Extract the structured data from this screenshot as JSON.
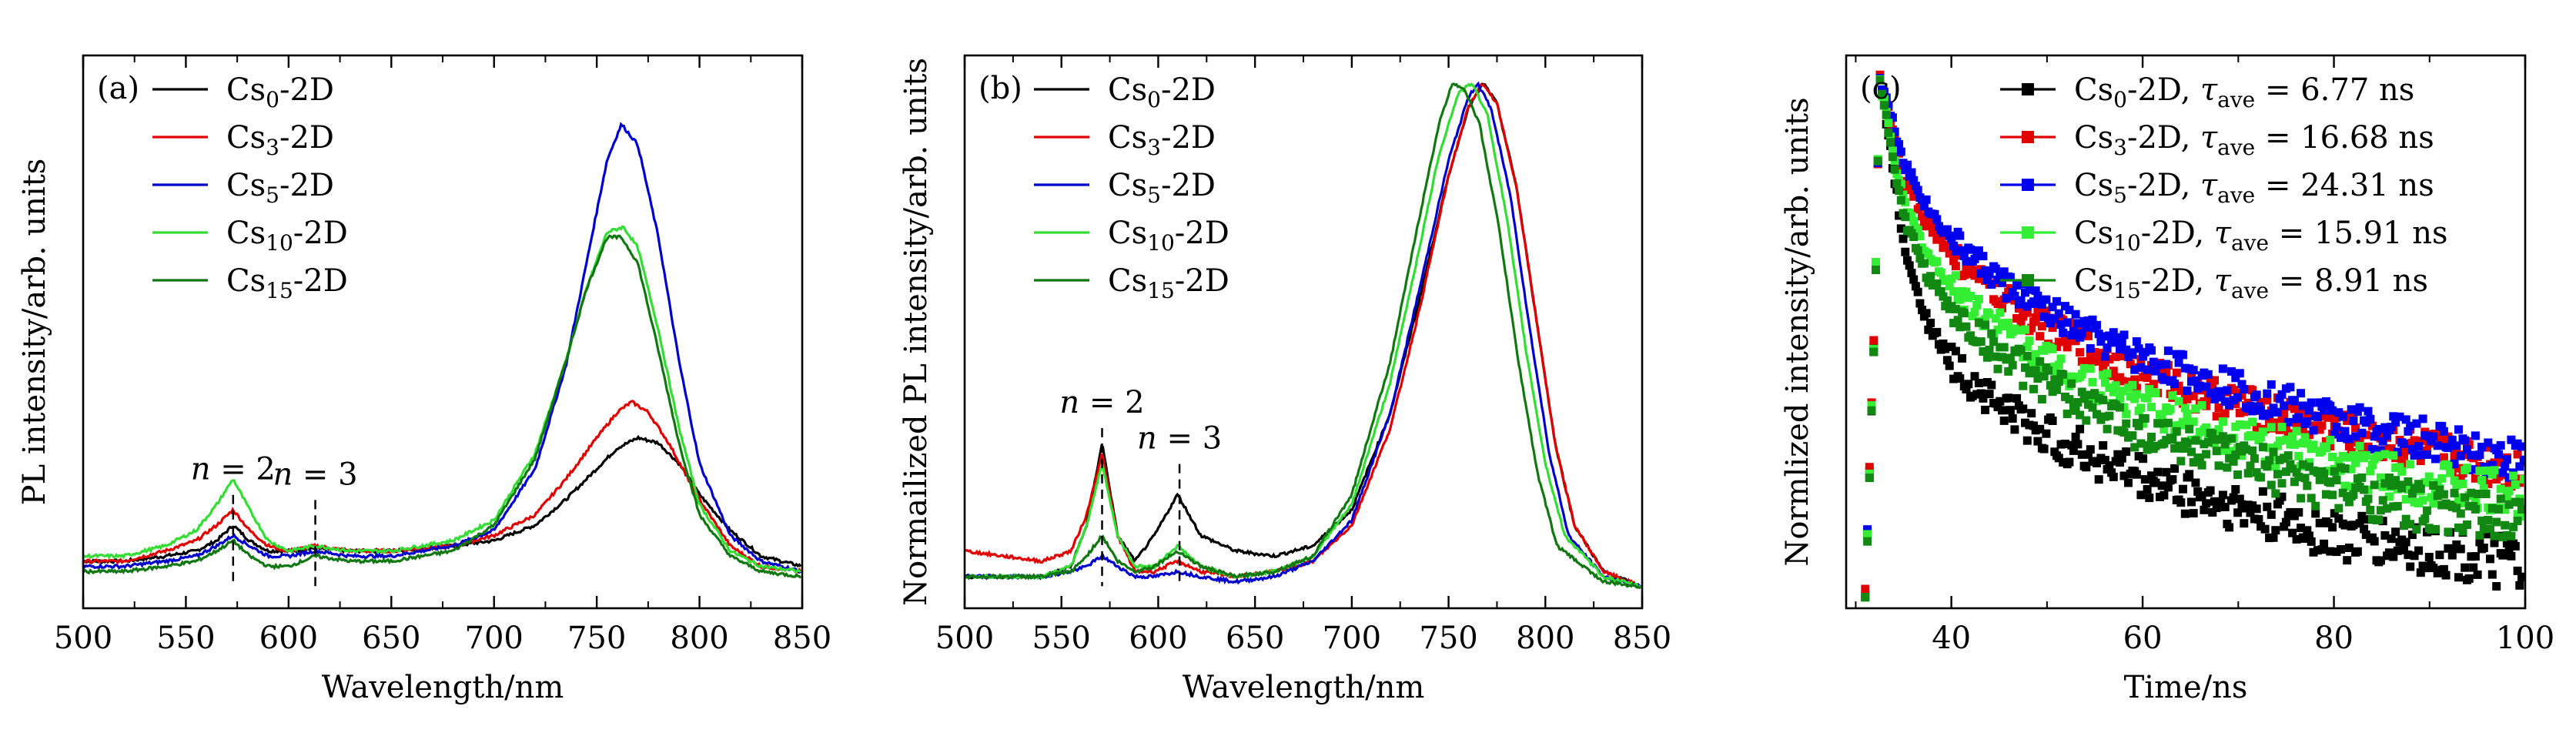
{
  "chart_data": [
    {
      "type": "line",
      "panel_label": "(a)",
      "xlabel": "Wavelength/nm",
      "ylabel": "PL intensity/arb. units",
      "xlim": [
        500,
        850
      ],
      "ylim": [
        0,
        1
      ],
      "xticks": [
        500,
        550,
        600,
        650,
        700,
        750,
        800,
        850
      ],
      "yticks": [],
      "grid": false,
      "legend_position": "top-left",
      "annotations": [
        {
          "base": "n",
          "rest": " = 2",
          "x": 573,
          "y": 0.22
        },
        {
          "base": "n",
          "rest": " = 3",
          "x": 613,
          "y": 0.21
        }
      ],
      "dashed_markers": [
        573,
        613
      ],
      "series": [
        {
          "name": "Cs0-2D",
          "label_base": "Cs",
          "label_sub": "0",
          "label_rest": "-2D",
          "color": "#000000",
          "x": [
            500,
            520,
            540,
            555,
            565,
            573,
            581,
            590,
            600,
            613,
            630,
            650,
            680,
            700,
            720,
            735,
            750,
            760,
            770,
            780,
            790,
            800,
            815,
            830,
            850
          ],
          "y": [
            0.07,
            0.07,
            0.08,
            0.09,
            0.11,
            0.14,
            0.11,
            0.09,
            0.09,
            0.095,
            0.09,
            0.09,
            0.1,
            0.11,
            0.14,
            0.19,
            0.25,
            0.29,
            0.31,
            0.3,
            0.26,
            0.2,
            0.13,
            0.08,
            0.06
          ]
        },
        {
          "name": "Cs3-2D",
          "label_base": "Cs",
          "label_sub": "3",
          "label_rest": "-2D",
          "color": "#e00000",
          "x": [
            500,
            520,
            540,
            555,
            565,
            573,
            581,
            590,
            600,
            613,
            630,
            650,
            680,
            700,
            720,
            735,
            750,
            760,
            767,
            775,
            785,
            800,
            815,
            830,
            850
          ],
          "y": [
            0.07,
            0.07,
            0.09,
            0.11,
            0.14,
            0.17,
            0.13,
            0.1,
            0.09,
            0.1,
            0.09,
            0.09,
            0.1,
            0.12,
            0.16,
            0.23,
            0.31,
            0.36,
            0.38,
            0.36,
            0.3,
            0.19,
            0.1,
            0.06,
            0.05
          ]
        },
        {
          "name": "Cs5-2D",
          "label_base": "Cs",
          "label_sub": "5",
          "label_rest": "-2D",
          "color": "#0000cc",
          "x": [
            500,
            520,
            540,
            555,
            565,
            573,
            581,
            590,
            600,
            613,
            630,
            650,
            680,
            700,
            720,
            735,
            745,
            755,
            762,
            770,
            780,
            790,
            800,
            815,
            830,
            850
          ],
          "y": [
            0.06,
            0.06,
            0.07,
            0.08,
            0.1,
            0.12,
            0.1,
            0.08,
            0.08,
            0.09,
            0.08,
            0.08,
            0.1,
            0.13,
            0.25,
            0.45,
            0.65,
            0.85,
            0.92,
            0.88,
            0.7,
            0.46,
            0.26,
            0.12,
            0.07,
            0.05
          ]
        },
        {
          "name": "Cs10-2D",
          "label_base": "Cs",
          "label_sub": "10",
          "label_rest": "-2D",
          "color": "#33dd33",
          "x": [
            500,
            520,
            540,
            555,
            565,
            573,
            581,
            590,
            600,
            613,
            630,
            650,
            680,
            700,
            720,
            735,
            745,
            755,
            763,
            770,
            780,
            790,
            800,
            815,
            830,
            850
          ],
          "y": [
            0.08,
            0.08,
            0.1,
            0.13,
            0.18,
            0.23,
            0.17,
            0.11,
            0.09,
            0.1,
            0.09,
            0.09,
            0.11,
            0.15,
            0.28,
            0.46,
            0.6,
            0.71,
            0.72,
            0.68,
            0.52,
            0.33,
            0.18,
            0.09,
            0.06,
            0.05
          ]
        },
        {
          "name": "Cs15-2D",
          "label_base": "Cs",
          "label_sub": "15",
          "label_rest": "-2D",
          "color": "#117711",
          "x": [
            500,
            520,
            540,
            555,
            565,
            573,
            581,
            590,
            600,
            613,
            630,
            650,
            680,
            700,
            720,
            735,
            745,
            755,
            762,
            770,
            780,
            790,
            800,
            815,
            830,
            850
          ],
          "y": [
            0.05,
            0.05,
            0.06,
            0.07,
            0.09,
            0.11,
            0.08,
            0.06,
            0.06,
            0.08,
            0.07,
            0.07,
            0.09,
            0.14,
            0.27,
            0.46,
            0.6,
            0.7,
            0.7,
            0.65,
            0.48,
            0.3,
            0.16,
            0.08,
            0.05,
            0.04
          ]
        }
      ]
    },
    {
      "type": "line",
      "panel_label": "(b)",
      "xlabel": "Wavelength/nm",
      "ylabel": "Normailized PL intensity/arb. units",
      "xlim": [
        500,
        850
      ],
      "ylim": [
        0,
        1
      ],
      "xticks": [
        500,
        550,
        600,
        650,
        700,
        750,
        800,
        850
      ],
      "yticks": [],
      "grid": false,
      "legend_position": "top-left",
      "annotations": [
        {
          "base": "n",
          "rest": " = 2",
          "x": 571,
          "y": 0.35
        },
        {
          "base": "n",
          "rest": " = 3",
          "x": 611,
          "y": 0.28
        }
      ],
      "dashed_markers": [
        571,
        611
      ],
      "series": [
        {
          "name": "Cs0-2D",
          "label_base": "Cs",
          "label_sub": "0",
          "label_rest": "-2D",
          "color": "#000000",
          "x": [
            500,
            520,
            540,
            555,
            563,
            571,
            579,
            588,
            598,
            610,
            622,
            640,
            660,
            680,
            700,
            720,
            735,
            750,
            760,
            768,
            775,
            785,
            795,
            805,
            815,
            830,
            850
          ],
          "y": [
            0.04,
            0.04,
            0.04,
            0.06,
            0.14,
            0.3,
            0.12,
            0.07,
            0.12,
            0.2,
            0.12,
            0.09,
            0.08,
            0.1,
            0.17,
            0.36,
            0.58,
            0.82,
            0.95,
            1.0,
            0.96,
            0.8,
            0.55,
            0.3,
            0.14,
            0.05,
            0.02
          ]
        },
        {
          "name": "Cs3-2D",
          "label_base": "Cs",
          "label_sub": "3",
          "label_rest": "-2D",
          "color": "#e00000",
          "x": [
            500,
            520,
            540,
            555,
            563,
            571,
            579,
            588,
            598,
            610,
            622,
            640,
            660,
            680,
            700,
            720,
            735,
            750,
            760,
            767,
            775,
            785,
            795,
            805,
            815,
            830,
            850
          ],
          "y": [
            0.09,
            0.08,
            0.07,
            0.09,
            0.16,
            0.28,
            0.12,
            0.05,
            0.05,
            0.07,
            0.05,
            0.04,
            0.05,
            0.07,
            0.14,
            0.33,
            0.56,
            0.82,
            0.95,
            1.0,
            0.96,
            0.8,
            0.55,
            0.3,
            0.14,
            0.05,
            0.02
          ]
        },
        {
          "name": "Cs5-2D",
          "label_base": "Cs",
          "label_sub": "5",
          "label_rest": "-2D",
          "color": "#0000cc",
          "x": [
            500,
            520,
            540,
            555,
            563,
            571,
            579,
            588,
            598,
            610,
            622,
            640,
            660,
            680,
            700,
            720,
            735,
            750,
            760,
            765,
            772,
            782,
            792,
            802,
            812,
            830,
            850
          ],
          "y": [
            0.04,
            0.04,
            0.04,
            0.05,
            0.06,
            0.08,
            0.06,
            0.04,
            0.04,
            0.05,
            0.04,
            0.03,
            0.04,
            0.07,
            0.15,
            0.36,
            0.6,
            0.85,
            0.97,
            1.0,
            0.95,
            0.78,
            0.52,
            0.28,
            0.12,
            0.04,
            0.02
          ]
        },
        {
          "name": "Cs10-2D",
          "label_base": "Cs",
          "label_sub": "10",
          "label_rest": "-2D",
          "color": "#33dd33",
          "x": [
            500,
            520,
            540,
            555,
            563,
            571,
            579,
            588,
            598,
            610,
            622,
            640,
            660,
            680,
            700,
            720,
            735,
            745,
            755,
            762,
            770,
            780,
            790,
            800,
            810,
            830,
            850
          ],
          "y": [
            0.04,
            0.04,
            0.04,
            0.06,
            0.14,
            0.26,
            0.12,
            0.06,
            0.06,
            0.1,
            0.06,
            0.04,
            0.05,
            0.08,
            0.18,
            0.42,
            0.68,
            0.86,
            0.98,
            1.0,
            0.94,
            0.74,
            0.48,
            0.26,
            0.12,
            0.04,
            0.02
          ]
        },
        {
          "name": "Cs15-2D",
          "label_base": "Cs",
          "label_sub": "15",
          "label_rest": "-2D",
          "color": "#117711",
          "x": [
            500,
            520,
            540,
            555,
            563,
            571,
            579,
            588,
            598,
            610,
            622,
            640,
            660,
            680,
            700,
            720,
            735,
            745,
            752,
            758,
            766,
            776,
            786,
            796,
            806,
            830,
            850
          ],
          "y": [
            0.04,
            0.04,
            0.04,
            0.05,
            0.08,
            0.12,
            0.07,
            0.05,
            0.06,
            0.09,
            0.06,
            0.04,
            0.05,
            0.08,
            0.2,
            0.46,
            0.74,
            0.92,
            1.0,
            0.99,
            0.92,
            0.72,
            0.46,
            0.24,
            0.1,
            0.03,
            0.02
          ]
        }
      ]
    },
    {
      "type": "scatter",
      "panel_label": "(c)",
      "xlabel": "Time/ns",
      "ylabel": "Normlized intensity/arb. units",
      "xlim": [
        29,
        100
      ],
      "ylim": [
        0,
        1
      ],
      "xticks": [
        40,
        60,
        80,
        100
      ],
      "yticks": [],
      "grid": false,
      "legend_position": "top-right",
      "marker": "square",
      "peak_time": 32.5,
      "series": [
        {
          "name": "Cs0-2D, τave = 6.77 ns",
          "label_base": "Cs",
          "label_sub": "0",
          "tau_value": "6.77",
          "color": "#000000",
          "x": [
            31,
            32,
            32.5,
            33.5,
            35,
            37.5,
            40,
            45,
            50,
            55,
            60,
            70,
            80,
            90,
            100
          ],
          "y": [
            0.0,
            0.55,
            1.0,
            0.88,
            0.68,
            0.53,
            0.45,
            0.37,
            0.31,
            0.27,
            0.23,
            0.17,
            0.12,
            0.09,
            0.06
          ]
        },
        {
          "name": "Cs3-2D, τave = 16.68 ns",
          "label_base": "Cs",
          "label_sub": "3",
          "tau_value": "16.68",
          "color": "#e00000",
          "x": [
            31,
            32,
            32.5,
            33.5,
            35,
            37.5,
            40,
            45,
            50,
            55,
            60,
            70,
            80,
            90,
            100
          ],
          "y": [
            0.0,
            0.55,
            1.0,
            0.93,
            0.81,
            0.72,
            0.66,
            0.58,
            0.52,
            0.47,
            0.43,
            0.37,
            0.32,
            0.28,
            0.24
          ]
        },
        {
          "name": "Cs5-2D, τave = 24.31 ns",
          "label_base": "Cs",
          "label_sub": "5",
          "tau_value": "24.31",
          "color": "#0000ee",
          "x": [
            31,
            32,
            32.5,
            33.5,
            35,
            37.5,
            40,
            45,
            50,
            55,
            60,
            70,
            80,
            90,
            100
          ],
          "y": [
            0.0,
            0.55,
            1.0,
            0.94,
            0.84,
            0.75,
            0.69,
            0.61,
            0.55,
            0.5,
            0.46,
            0.4,
            0.34,
            0.3,
            0.26
          ]
        },
        {
          "name": "Cs10-2D, τave = 15.91 ns",
          "label_base": "Cs",
          "label_sub": "10",
          "tau_value": "15.91",
          "color": "#33ee33",
          "x": [
            31,
            32,
            32.5,
            33.5,
            35,
            37.5,
            40,
            45,
            50,
            55,
            60,
            70,
            80,
            90,
            100
          ],
          "y": [
            0.0,
            0.55,
            1.0,
            0.9,
            0.76,
            0.66,
            0.6,
            0.52,
            0.46,
            0.41,
            0.37,
            0.31,
            0.26,
            0.22,
            0.19
          ]
        },
        {
          "name": "Cs15-2D, τave = 8.91 ns",
          "label_base": "Cs",
          "label_sub": "15",
          "tau_value": "8.91",
          "color": "#118811",
          "x": [
            31,
            32,
            32.5,
            33.5,
            35,
            37.5,
            40,
            45,
            50,
            55,
            60,
            70,
            80,
            90,
            100
          ],
          "y": [
            0.0,
            0.55,
            1.0,
            0.89,
            0.73,
            0.62,
            0.55,
            0.47,
            0.41,
            0.36,
            0.32,
            0.26,
            0.21,
            0.17,
            0.14
          ]
        }
      ]
    }
  ]
}
